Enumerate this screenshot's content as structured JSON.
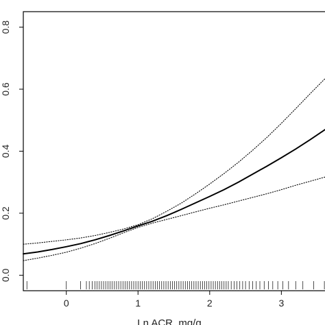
{
  "chart_data": {
    "type": "line",
    "title": "",
    "xlabel": "Ln ACR, mg/g",
    "ylabel": "",
    "xlim": [
      -0.6,
      3.8
    ],
    "ylim": [
      -0.05,
      0.85
    ],
    "grid": false,
    "x_ticks": [
      0,
      1,
      2,
      3
    ],
    "x_tick_labels": [
      "0",
      "1",
      "2",
      "3"
    ],
    "y_ticks": [
      0.0,
      0.2,
      0.4,
      0.6,
      0.8
    ],
    "y_tick_labels": [
      "0.0",
      "0.2",
      "0.4",
      "0.6",
      "0.8"
    ],
    "series": [
      {
        "style": "solid",
        "x": [
          -0.6,
          -0.4,
          -0.2,
          0.0,
          0.2,
          0.4,
          0.6,
          0.8,
          1.0,
          1.2,
          1.4,
          1.6,
          1.8,
          2.0,
          2.2,
          2.4,
          2.6,
          2.8,
          3.0,
          3.2,
          3.4,
          3.6,
          3.8
        ],
        "y": [
          0.069,
          0.075,
          0.083,
          0.092,
          0.102,
          0.114,
          0.128,
          0.143,
          0.159,
          0.174,
          0.192,
          0.212,
          0.233,
          0.254,
          0.276,
          0.3,
          0.326,
          0.352,
          0.379,
          0.407,
          0.437,
          0.468,
          0.5
        ]
      },
      {
        "style": "dotted",
        "x": [
          -0.6,
          -0.4,
          -0.2,
          0.0,
          0.2,
          0.4,
          0.6,
          0.8,
          1.0,
          1.2,
          1.4,
          1.6,
          1.8,
          2.0,
          2.2,
          2.4,
          2.6,
          2.8,
          3.0,
          3.2,
          3.4,
          3.6,
          3.8
        ],
        "y": [
          0.1,
          0.104,
          0.109,
          0.114,
          0.12,
          0.128,
          0.138,
          0.149,
          0.163,
          0.182,
          0.206,
          0.232,
          0.262,
          0.294,
          0.328,
          0.364,
          0.403,
          0.445,
          0.49,
          0.537,
          0.585,
          0.632,
          0.68
        ]
      },
      {
        "style": "dotted",
        "x": [
          -0.6,
          -0.4,
          -0.2,
          0.0,
          0.2,
          0.4,
          0.6,
          0.8,
          1.0,
          1.2,
          1.4,
          1.6,
          1.8,
          2.0,
          2.2,
          2.4,
          2.6,
          2.8,
          3.0,
          3.2,
          3.4,
          3.6,
          3.8
        ],
        "y": [
          0.047,
          0.055,
          0.064,
          0.074,
          0.087,
          0.102,
          0.119,
          0.137,
          0.154,
          0.168,
          0.18,
          0.192,
          0.204,
          0.216,
          0.227,
          0.239,
          0.251,
          0.263,
          0.276,
          0.29,
          0.303,
          0.316,
          0.33
        ]
      }
    ],
    "rug": [
      -0.55,
      0.0,
      0.2,
      0.28,
      0.32,
      0.36,
      0.4,
      0.43,
      0.46,
      0.49,
      0.52,
      0.55,
      0.58,
      0.61,
      0.64,
      0.67,
      0.7,
      0.73,
      0.76,
      0.79,
      0.82,
      0.85,
      0.88,
      0.91,
      0.94,
      0.97,
      1.0,
      1.03,
      1.06,
      1.09,
      1.12,
      1.15,
      1.18,
      1.21,
      1.24,
      1.27,
      1.3,
      1.33,
      1.36,
      1.39,
      1.42,
      1.45,
      1.48,
      1.51,
      1.54,
      1.57,
      1.6,
      1.63,
      1.66,
      1.69,
      1.72,
      1.75,
      1.78,
      1.81,
      1.84,
      1.87,
      1.9,
      1.93,
      1.96,
      1.99,
      2.02,
      2.05,
      2.08,
      2.11,
      2.14,
      2.17,
      2.2,
      2.23,
      2.26,
      2.3,
      2.34,
      2.38,
      2.42,
      2.46,
      2.5,
      2.55,
      2.6,
      2.65,
      2.7,
      2.76,
      2.82,
      2.88,
      2.95,
      3.02,
      3.1,
      3.2,
      3.3,
      3.45,
      3.6,
      3.75
    ]
  }
}
